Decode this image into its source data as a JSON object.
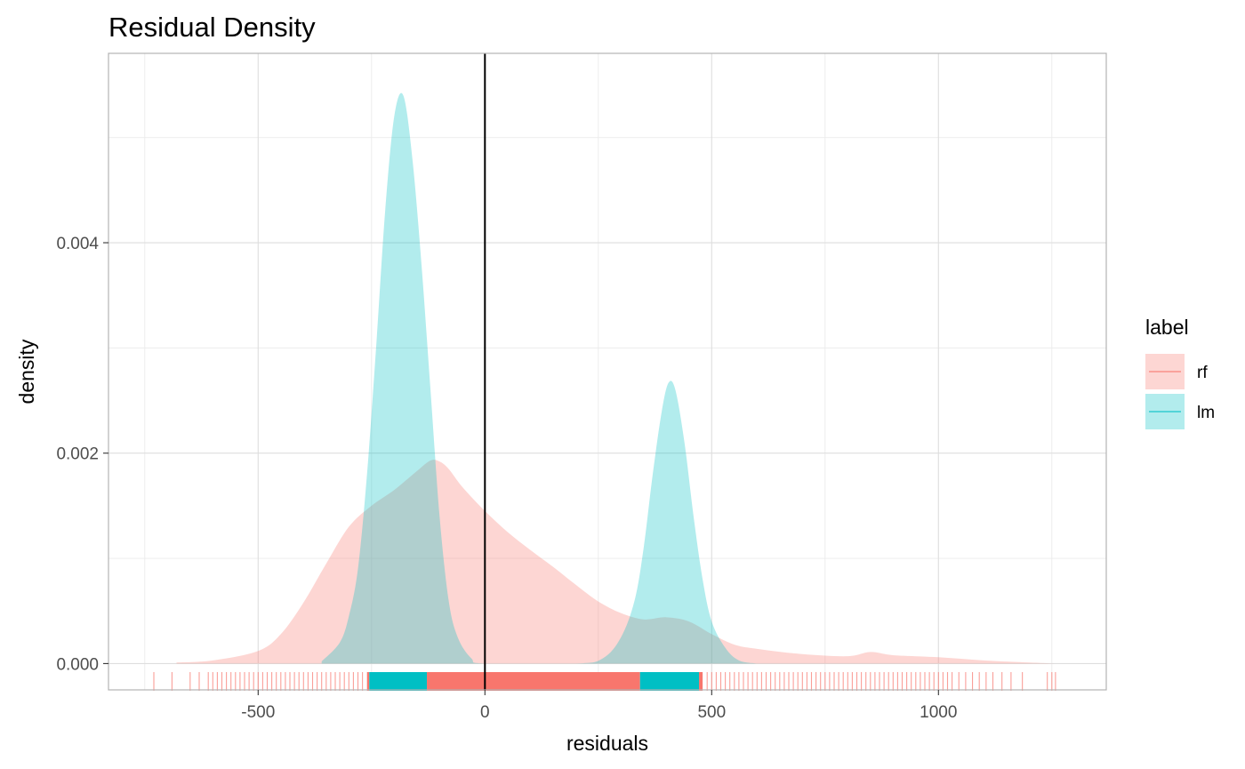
{
  "chart_data": {
    "type": "area",
    "title": "Residual Density",
    "xlabel": "residuals",
    "ylabel": "density",
    "xlim": [
      -830,
      1370
    ],
    "ylim": [
      -0.00025,
      0.0058
    ],
    "x_ticks": [
      -500,
      0,
      500,
      1000
    ],
    "x_tick_labels": [
      "-500",
      "0",
      "500",
      "1000"
    ],
    "y_ticks": [
      0,
      0.002,
      0.004
    ],
    "y_tick_labels": [
      "0.000",
      "0.002",
      "0.004"
    ],
    "grid": true,
    "vline_x": 0,
    "legend": {
      "title": "label",
      "position": "right",
      "entries": [
        {
          "label": "rf",
          "color": "#F8766D"
        },
        {
          "label": "lm",
          "color": "#00BFC4"
        }
      ]
    },
    "series": [
      {
        "name": "rf",
        "color": "#F8766D",
        "x": [
          -680,
          -600,
          -500,
          -450,
          -400,
          -350,
          -300,
          -250,
          -200,
          -150,
          -120,
          -100,
          -80,
          -50,
          0,
          50,
          100,
          150,
          200,
          250,
          300,
          350,
          400,
          450,
          500,
          550,
          600,
          700,
          800,
          850,
          900,
          1000,
          1100,
          1200,
          1260
        ],
        "values": [
          1e-05,
          3e-05,
          0.00012,
          0.00028,
          0.00058,
          0.00095,
          0.0013,
          0.0015,
          0.00165,
          0.00183,
          0.00193,
          0.00192,
          0.00185,
          0.00168,
          0.00145,
          0.00125,
          0.00108,
          0.00092,
          0.00075,
          0.00059,
          0.00048,
          0.00042,
          0.00044,
          0.0004,
          0.00028,
          0.00018,
          0.00014,
          9e-05,
          7e-05,
          0.00011,
          8e-05,
          6e-05,
          3e-05,
          1e-05,
          0.0
        ]
      },
      {
        "name": "lm",
        "color": "#00BFC4",
        "x": [
          -360,
          -320,
          -300,
          -280,
          -260,
          -240,
          -220,
          -200,
          -180,
          -160,
          -140,
          -120,
          -100,
          -80,
          -60,
          -30,
          0,
          200,
          260,
          300,
          330,
          350,
          370,
          390,
          405,
          420,
          440,
          460,
          480,
          500,
          530,
          560,
          600
        ],
        "values": [
          2e-05,
          0.0002,
          0.00045,
          0.0009,
          0.0018,
          0.003,
          0.0043,
          0.0052,
          0.0054,
          0.0048,
          0.0038,
          0.0026,
          0.0014,
          0.0006,
          0.00025,
          5e-05,
          0.0,
          0.0,
          5e-05,
          0.00025,
          0.0006,
          0.0011,
          0.0018,
          0.0024,
          0.00267,
          0.0026,
          0.0021,
          0.0014,
          0.0008,
          0.0004,
          0.00015,
          3e-05,
          0.0
        ]
      }
    ],
    "rug": {
      "solid_bands": [
        {
          "series": "rf",
          "from": -260,
          "to": -255
        },
        {
          "series": "lm",
          "from": -255,
          "to": -128
        },
        {
          "series": "rf",
          "from": -128,
          "to": 342
        },
        {
          "series": "lm",
          "from": 342,
          "to": 472
        },
        {
          "series": "rf",
          "from": 472,
          "to": 480
        }
      ],
      "rf_ticks": [
        -730,
        -690,
        -650,
        -630,
        -610,
        -600,
        -590,
        -580,
        -570,
        -560,
        -550,
        -540,
        -530,
        -520,
        -510,
        -500,
        -490,
        -480,
        -470,
        -460,
        -450,
        -440,
        -430,
        -420,
        -410,
        -400,
        -390,
        -380,
        -370,
        -360,
        -350,
        -340,
        -330,
        -320,
        -310,
        -300,
        -290,
        -280,
        -270,
        490,
        500,
        510,
        520,
        530,
        540,
        550,
        560,
        570,
        580,
        590,
        600,
        610,
        620,
        630,
        640,
        650,
        660,
        670,
        680,
        690,
        700,
        710,
        720,
        730,
        740,
        750,
        760,
        770,
        780,
        790,
        800,
        810,
        820,
        830,
        840,
        850,
        860,
        870,
        880,
        890,
        900,
        910,
        920,
        930,
        940,
        950,
        960,
        970,
        980,
        990,
        1000,
        1010,
        1020,
        1030,
        1045,
        1060,
        1075,
        1090,
        1105,
        1120,
        1140,
        1160,
        1185,
        1240,
        1250,
        1258
      ]
    }
  }
}
